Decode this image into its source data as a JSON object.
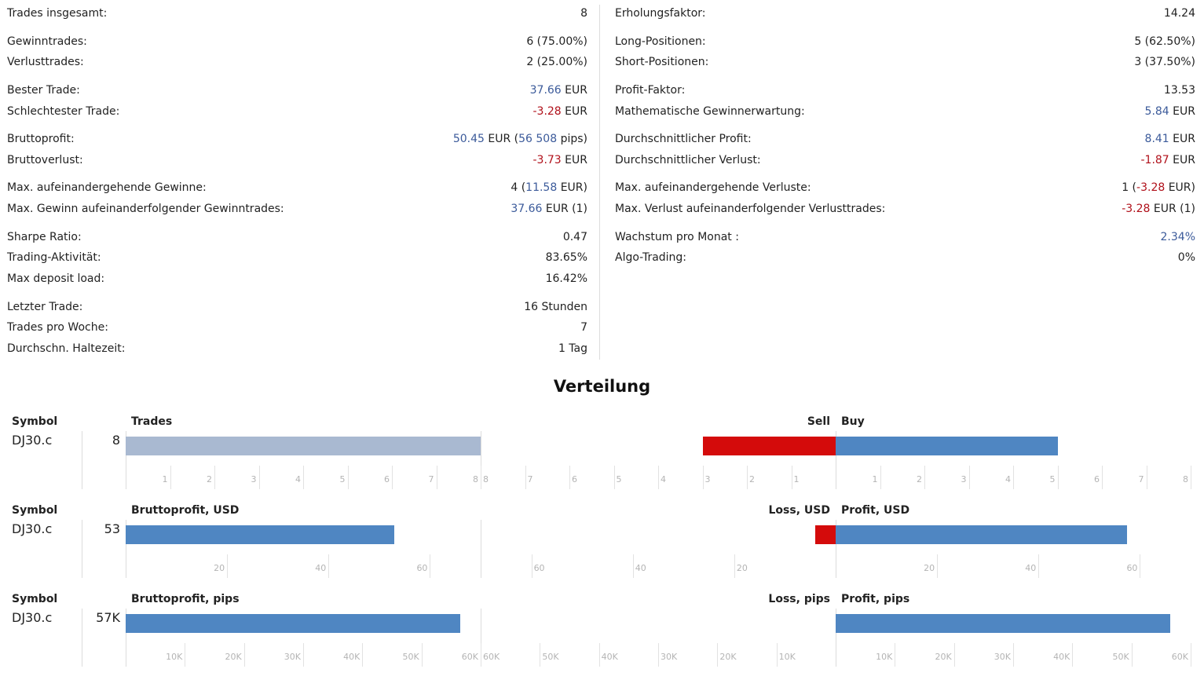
{
  "stats": {
    "left": [
      {
        "label": "Trades insgesamt:",
        "value": [
          {
            "t": "8"
          }
        ]
      },
      {
        "label": "Gewinntrades:",
        "value": [
          {
            "t": "6 (75.00%)"
          }
        ]
      },
      {
        "label": "Verlusttrades:",
        "value": [
          {
            "t": "2 (25.00%)"
          }
        ]
      },
      {
        "label": "Bester Trade:",
        "value": [
          {
            "t": "37.66",
            "c": "pos"
          },
          {
            "t": " EUR"
          }
        ]
      },
      {
        "label": "Schlechtester Trade:",
        "value": [
          {
            "t": "-3.28",
            "c": "neg"
          },
          {
            "t": " EUR"
          }
        ]
      },
      {
        "label": "Bruttoprofit:",
        "value": [
          {
            "t": "50.45",
            "c": "pos"
          },
          {
            "t": " EUR ("
          },
          {
            "t": "56 508",
            "c": "pos"
          },
          {
            "t": " pips)"
          }
        ]
      },
      {
        "label": "Bruttoverlust:",
        "value": [
          {
            "t": "-3.73",
            "c": "neg"
          },
          {
            "t": " EUR"
          }
        ]
      },
      {
        "label": "Max. aufeinandergehende Gewinne:",
        "value": [
          {
            "t": "4 ("
          },
          {
            "t": "11.58",
            "c": "pos"
          },
          {
            "t": " EUR)"
          }
        ]
      },
      {
        "label": "Max. Gewinn aufeinanderfolgender Gewinntrades:",
        "value": [
          {
            "t": "37.66",
            "c": "pos"
          },
          {
            "t": " EUR (1)"
          }
        ]
      },
      {
        "label": "Sharpe Ratio:",
        "value": [
          {
            "t": "0.47"
          }
        ]
      },
      {
        "label": "Trading-Aktivität:",
        "value": [
          {
            "t": "83.65%"
          }
        ]
      },
      {
        "label": "Max deposit load:",
        "value": [
          {
            "t": "16.42%"
          }
        ]
      },
      {
        "label": "Letzter Trade:",
        "value": [
          {
            "t": "16 Stunden"
          }
        ]
      },
      {
        "label": "Trades pro Woche:",
        "value": [
          {
            "t": "7"
          }
        ]
      },
      {
        "label": "Durchschn. Haltezeit:",
        "value": [
          {
            "t": "1 Tag"
          }
        ]
      }
    ],
    "right": [
      {
        "label": "Erholungsfaktor:",
        "value": [
          {
            "t": "14.24"
          }
        ]
      },
      {
        "label": "Long-Positionen:",
        "value": [
          {
            "t": "5 (62.50%)"
          }
        ]
      },
      {
        "label": "Short-Positionen:",
        "value": [
          {
            "t": "3 (37.50%)"
          }
        ]
      },
      {
        "label": "Profit-Faktor:",
        "value": [
          {
            "t": "13.53"
          }
        ]
      },
      {
        "label": "Mathematische Gewinnerwartung:",
        "value": [
          {
            "t": "5.84",
            "c": "pos"
          },
          {
            "t": " EUR"
          }
        ]
      },
      {
        "label": "Durchschnittlicher Profit:",
        "value": [
          {
            "t": "8.41",
            "c": "pos"
          },
          {
            "t": " EUR"
          }
        ]
      },
      {
        "label": "Durchschnittlicher Verlust:",
        "value": [
          {
            "t": "-1.87",
            "c": "neg"
          },
          {
            "t": " EUR"
          }
        ]
      },
      {
        "label": "Max. aufeinandergehende Verluste:",
        "value": [
          {
            "t": "1 ("
          },
          {
            "t": "-3.28",
            "c": "neg"
          },
          {
            "t": " EUR)"
          }
        ]
      },
      {
        "label": "Max. Verlust aufeinanderfolgender Verlusttrades:",
        "value": [
          {
            "t": "-3.28",
            "c": "neg"
          },
          {
            "t": " EUR (1)"
          }
        ]
      },
      {
        "label": "Wachstum pro Monat :",
        "value": [
          {
            "t": "2.34%",
            "c": "pos"
          }
        ]
      },
      {
        "label": "Algo-Trading:",
        "value": [
          {
            "t": "0%"
          }
        ]
      }
    ]
  },
  "distribution": {
    "title": "Verteilung",
    "colors": {
      "grey": "#a9b9d1",
      "blue": "#4f86c2",
      "red": "#d40b0b"
    },
    "charts": [
      {
        "symbol_header": "Symbol",
        "symbol": "DJ30.c",
        "total_label": "8",
        "left_header": "Trades",
        "loss_header": "Sell",
        "profit_header": "Buy",
        "left_value": 8,
        "left_color": "grey",
        "left_ticks": [
          "1",
          "2",
          "3",
          "4",
          "5",
          "6",
          "7",
          "8"
        ],
        "left_max": 8,
        "loss_value": 3,
        "profit_value": 5,
        "side_ticks": [
          "1",
          "2",
          "3",
          "4",
          "5",
          "6",
          "7",
          "8"
        ],
        "side_max": 8
      },
      {
        "symbol_header": "Symbol",
        "symbol": "DJ30.c",
        "total_label": "53",
        "left_header": "Bruttoprofit, USD",
        "loss_header": "Loss, USD",
        "profit_header": "Profit, USD",
        "left_value": 53,
        "left_color": "blue",
        "left_ticks": [
          "20",
          "40",
          "60"
        ],
        "left_tick_values": [
          20,
          40,
          60
        ],
        "left_max": 70,
        "loss_value": 4,
        "profit_value": 57.5,
        "side_ticks": [
          "20",
          "40",
          "60"
        ],
        "side_tick_values": [
          20,
          40,
          60
        ],
        "side_max": 70
      },
      {
        "symbol_header": "Symbol",
        "symbol": "DJ30.c",
        "total_label": "57K",
        "left_header": "Bruttoprofit, pips",
        "loss_header": "Loss, pips",
        "profit_header": "Profit, pips",
        "left_value": 56508,
        "left_color": "blue",
        "left_ticks": [
          "10K",
          "20K",
          "30K",
          "40K",
          "50K",
          "60K"
        ],
        "left_tick_values": [
          10000,
          20000,
          30000,
          40000,
          50000,
          60000
        ],
        "left_max": 60000,
        "loss_value": 0,
        "profit_value": 56508,
        "side_ticks": [
          "10K",
          "20K",
          "30K",
          "40K",
          "50K",
          "60K"
        ],
        "side_tick_values": [
          10000,
          20000,
          30000,
          40000,
          50000,
          60000
        ],
        "side_max": 60000
      }
    ]
  }
}
